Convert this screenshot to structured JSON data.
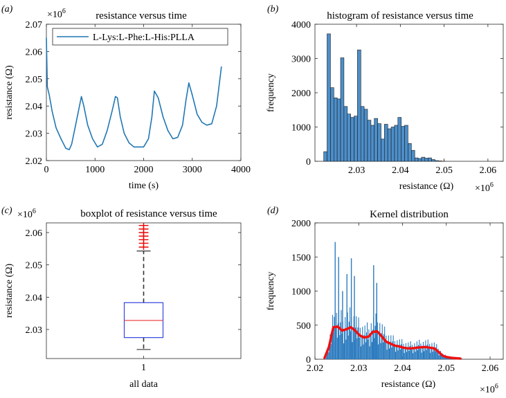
{
  "chart_data": [
    {
      "panel": "(a)",
      "type": "line",
      "title": "resistance versus time",
      "xlabel": "time (s)",
      "ylabel": "resistance (Ω)",
      "exponent_label": "×10",
      "exponent": "6",
      "xlim": [
        0,
        4000
      ],
      "ylim": [
        2.02,
        2.07
      ],
      "xticks": [
        "0",
        "1000",
        "2000",
        "3000",
        "4000"
      ],
      "yticks": [
        "2.02",
        "2.03",
        "2.04",
        "2.05",
        "2.06",
        "2.07"
      ],
      "legend": "L-Lys:L-Phe:L-His:PLLA",
      "line_color": "#1f77b4",
      "series": [
        {
          "name": "L-Lys:L-Phe:L-His:PLLA",
          "x": [
            0,
            20,
            60,
            120,
            200,
            300,
            400,
            470,
            520,
            600,
            680,
            720,
            770,
            850,
            950,
            1050,
            1150,
            1250,
            1350,
            1420,
            1460,
            1520,
            1600,
            1700,
            1800,
            1900,
            2000,
            2100,
            2170,
            2220,
            2300,
            2400,
            2500,
            2600,
            2700,
            2800,
            2870,
            2930,
            3000,
            3100,
            3200,
            3300,
            3400,
            3500,
            3600
          ],
          "y": [
            2.065,
            2.047,
            2.044,
            2.038,
            2.032,
            2.028,
            2.0245,
            2.024,
            2.026,
            2.033,
            2.04,
            2.0435,
            2.04,
            2.033,
            2.028,
            2.025,
            2.026,
            2.031,
            2.038,
            2.0435,
            2.043,
            2.036,
            2.03,
            2.0265,
            2.025,
            2.025,
            2.025,
            2.028,
            2.036,
            2.0455,
            2.043,
            2.036,
            2.031,
            2.028,
            2.0285,
            2.033,
            2.042,
            2.0485,
            2.044,
            2.037,
            2.034,
            2.033,
            2.0335,
            2.04,
            2.0545
          ]
        }
      ]
    },
    {
      "panel": "(b)",
      "type": "bar",
      "title": "histogram of resistance versus time",
      "xlabel": "resistance (Ω)",
      "ylabel": "frequency",
      "exponent_label": "×10",
      "exponent": "6",
      "xlim": [
        2.0205,
        2.0635
      ],
      "ylim": [
        0,
        4000
      ],
      "xticks": [
        "2.03",
        "2.04",
        "2.05",
        "2.06"
      ],
      "yticks": [
        "0",
        "1000",
        "2000",
        "3000",
        "4000"
      ],
      "bin_start": 2.0225,
      "bin_width": 0.00077,
      "bar_color": "#4c8ec9",
      "values": [
        280,
        3720,
        2150,
        1850,
        1820,
        3020,
        1600,
        1380,
        1280,
        1320,
        3250,
        1600,
        1520,
        1200,
        1050,
        1250,
        1100,
        650,
        1080,
        950,
        1000,
        1050,
        1280,
        1020,
        1050,
        520,
        320,
        100,
        80,
        120,
        90,
        100,
        50,
        20,
        10,
        5
      ]
    },
    {
      "panel": "(c)",
      "type": "boxplot",
      "title": "boxplot of resistance versus time",
      "xlabel": "all data",
      "ylabel": "resistance (Ω)",
      "exponent_label": "×10",
      "exponent": "6",
      "ylim": [
        2.021,
        2.063
      ],
      "yticks": [
        "2.03",
        "2.04",
        "2.05",
        "2.06"
      ],
      "xticks": [
        "1"
      ],
      "box": {
        "q1": 2.0275,
        "median": 2.0328,
        "q3": 2.0383,
        "whisker_low": 2.0238,
        "whisker_high": 2.0543
      },
      "outliers": [
        2.0555,
        2.0567,
        2.0578,
        2.0589,
        2.06,
        2.0611,
        2.0622
      ],
      "box_color": "#3344dd",
      "median_color": "#ee3333",
      "outlier_color": "#ee0000"
    },
    {
      "panel": "(d)",
      "type": "bar",
      "title": "Kernel distribution",
      "xlabel": "resistance (Ω)",
      "ylabel": "frequency",
      "exponent_label": "×10",
      "exponent": "6",
      "xlim": [
        2.02,
        2.063
      ],
      "ylim": [
        0,
        2000
      ],
      "xticks": [
        "2.02",
        "2.03",
        "2.04",
        "2.05",
        "2.06"
      ],
      "yticks": [
        "0",
        "500",
        "1000",
        "1500",
        "2000"
      ],
      "bar_color": "#2b7bbf",
      "kde_color": "#ee1111",
      "peak_bars": [
        {
          "x": 2.0245,
          "y": 1720
        },
        {
          "x": 2.0253,
          "y": 1500
        },
        {
          "x": 2.0262,
          "y": 1000
        },
        {
          "x": 2.0272,
          "y": 1250
        },
        {
          "x": 2.0282,
          "y": 1480
        },
        {
          "x": 2.0289,
          "y": 1220
        },
        {
          "x": 2.0333,
          "y": 1380
        },
        {
          "x": 2.034,
          "y": 1120
        }
      ],
      "kde": {
        "x": [
          2.0222,
          2.0232,
          2.0242,
          2.0252,
          2.0262,
          2.0272,
          2.0282,
          2.0292,
          2.0302,
          2.0312,
          2.0322,
          2.0332,
          2.0342,
          2.0352,
          2.0362,
          2.0372,
          2.0382,
          2.0392,
          2.0402,
          2.0412,
          2.0422,
          2.0432,
          2.0442,
          2.0452,
          2.0462,
          2.0472,
          2.0482,
          2.0492,
          2.0502,
          2.0512,
          2.0522,
          2.0532
        ],
        "y": [
          20,
          180,
          470,
          480,
          420,
          440,
          470,
          420,
          350,
          320,
          330,
          400,
          410,
          340,
          260,
          230,
          200,
          190,
          170,
          160,
          160,
          170,
          175,
          180,
          170,
          160,
          110,
          50,
          30,
          20,
          15,
          10
        ]
      }
    }
  ],
  "panel_labels": [
    "(a)",
    "(b)",
    "(c)",
    "(d)"
  ]
}
